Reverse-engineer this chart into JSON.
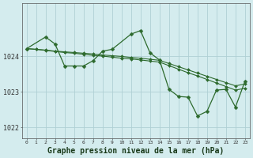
{
  "background_color": "#d4ecee",
  "grid_color": "#b0d0d4",
  "line_color": "#2d6a2d",
  "xlabel": "Graphe pression niveau de la mer (hPa)",
  "xlabel_fontsize": 7,
  "xlim": [
    -0.5,
    23.5
  ],
  "ylim": [
    1021.7,
    1025.5
  ],
  "yticks": [
    1022,
    1023,
    1024
  ],
  "xticks": [
    0,
    1,
    2,
    3,
    4,
    5,
    6,
    7,
    8,
    9,
    10,
    11,
    12,
    13,
    14,
    15,
    16,
    17,
    18,
    19,
    20,
    21,
    22,
    23
  ],
  "line1_x": [
    0,
    1,
    2,
    3,
    4,
    5,
    6,
    7,
    8,
    9,
    10,
    11,
    12,
    13,
    14,
    15,
    16,
    17,
    18,
    19,
    20,
    21,
    22,
    23
  ],
  "line1_y": [
    1024.22,
    1024.2,
    1024.18,
    1024.15,
    1024.13,
    1024.11,
    1024.09,
    1024.07,
    1024.04,
    1024.02,
    1024.0,
    1023.97,
    1023.95,
    1023.92,
    1023.89,
    1023.8,
    1023.71,
    1023.62,
    1023.53,
    1023.44,
    1023.35,
    1023.26,
    1023.17,
    1023.22
  ],
  "line2_x": [
    0,
    1,
    2,
    3,
    4,
    5,
    6,
    7,
    8,
    9,
    10,
    11,
    12,
    13,
    14,
    15,
    16,
    17,
    18,
    19,
    20,
    21,
    22,
    23
  ],
  "line2_y": [
    1024.22,
    1024.2,
    1024.17,
    1024.14,
    1024.11,
    1024.09,
    1024.06,
    1024.03,
    1024.01,
    1023.98,
    1023.95,
    1023.93,
    1023.9,
    1023.87,
    1023.84,
    1023.74,
    1023.64,
    1023.54,
    1023.45,
    1023.35,
    1023.25,
    1023.15,
    1023.05,
    1023.1
  ],
  "line3_x": [
    0,
    2,
    3,
    4,
    5,
    6,
    7,
    8,
    9,
    11,
    12,
    13,
    14,
    15,
    16,
    17,
    18,
    19,
    20,
    21,
    22,
    23
  ],
  "line3_y": [
    1024.22,
    1024.55,
    1024.35,
    1023.73,
    1023.73,
    1023.73,
    1023.88,
    1024.15,
    1024.2,
    1024.63,
    1024.73,
    1024.1,
    1023.9,
    1023.07,
    1022.87,
    1022.85,
    1022.32,
    1022.45,
    1023.05,
    1023.07,
    1022.57,
    1023.3
  ]
}
